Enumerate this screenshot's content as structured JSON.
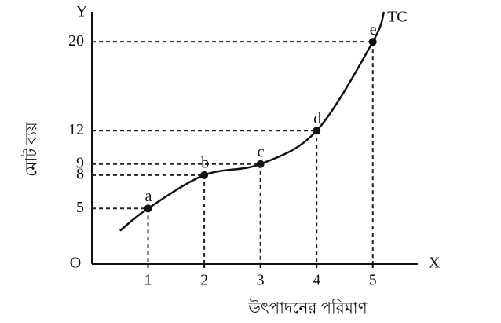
{
  "chart_data": {
    "type": "line",
    "x_label": "উৎপাদনের পরিমাণ",
    "y_label": "মোট ব্যয়",
    "origin_label": "O",
    "x_axis_name": "X",
    "y_axis_name": "Y",
    "series": [
      {
        "name": "TC",
        "color": "#111111",
        "x": [
          0.5,
          1,
          2,
          3,
          4,
          5,
          5.2
        ],
        "values": [
          3,
          5,
          8,
          9,
          12,
          20,
          22.7
        ]
      }
    ],
    "points": {
      "labels": [
        "a",
        "b",
        "c",
        "d",
        "e"
      ],
      "x": [
        1,
        2,
        3,
        4,
        5
      ],
      "values": [
        5,
        8,
        9,
        12,
        20
      ]
    },
    "xlim": [
      0,
      5.8
    ],
    "ylim": [
      0,
      22.7
    ],
    "xticks": [
      1,
      2,
      3,
      4,
      5
    ],
    "yticks": [
      5,
      8,
      9,
      12,
      20
    ]
  }
}
